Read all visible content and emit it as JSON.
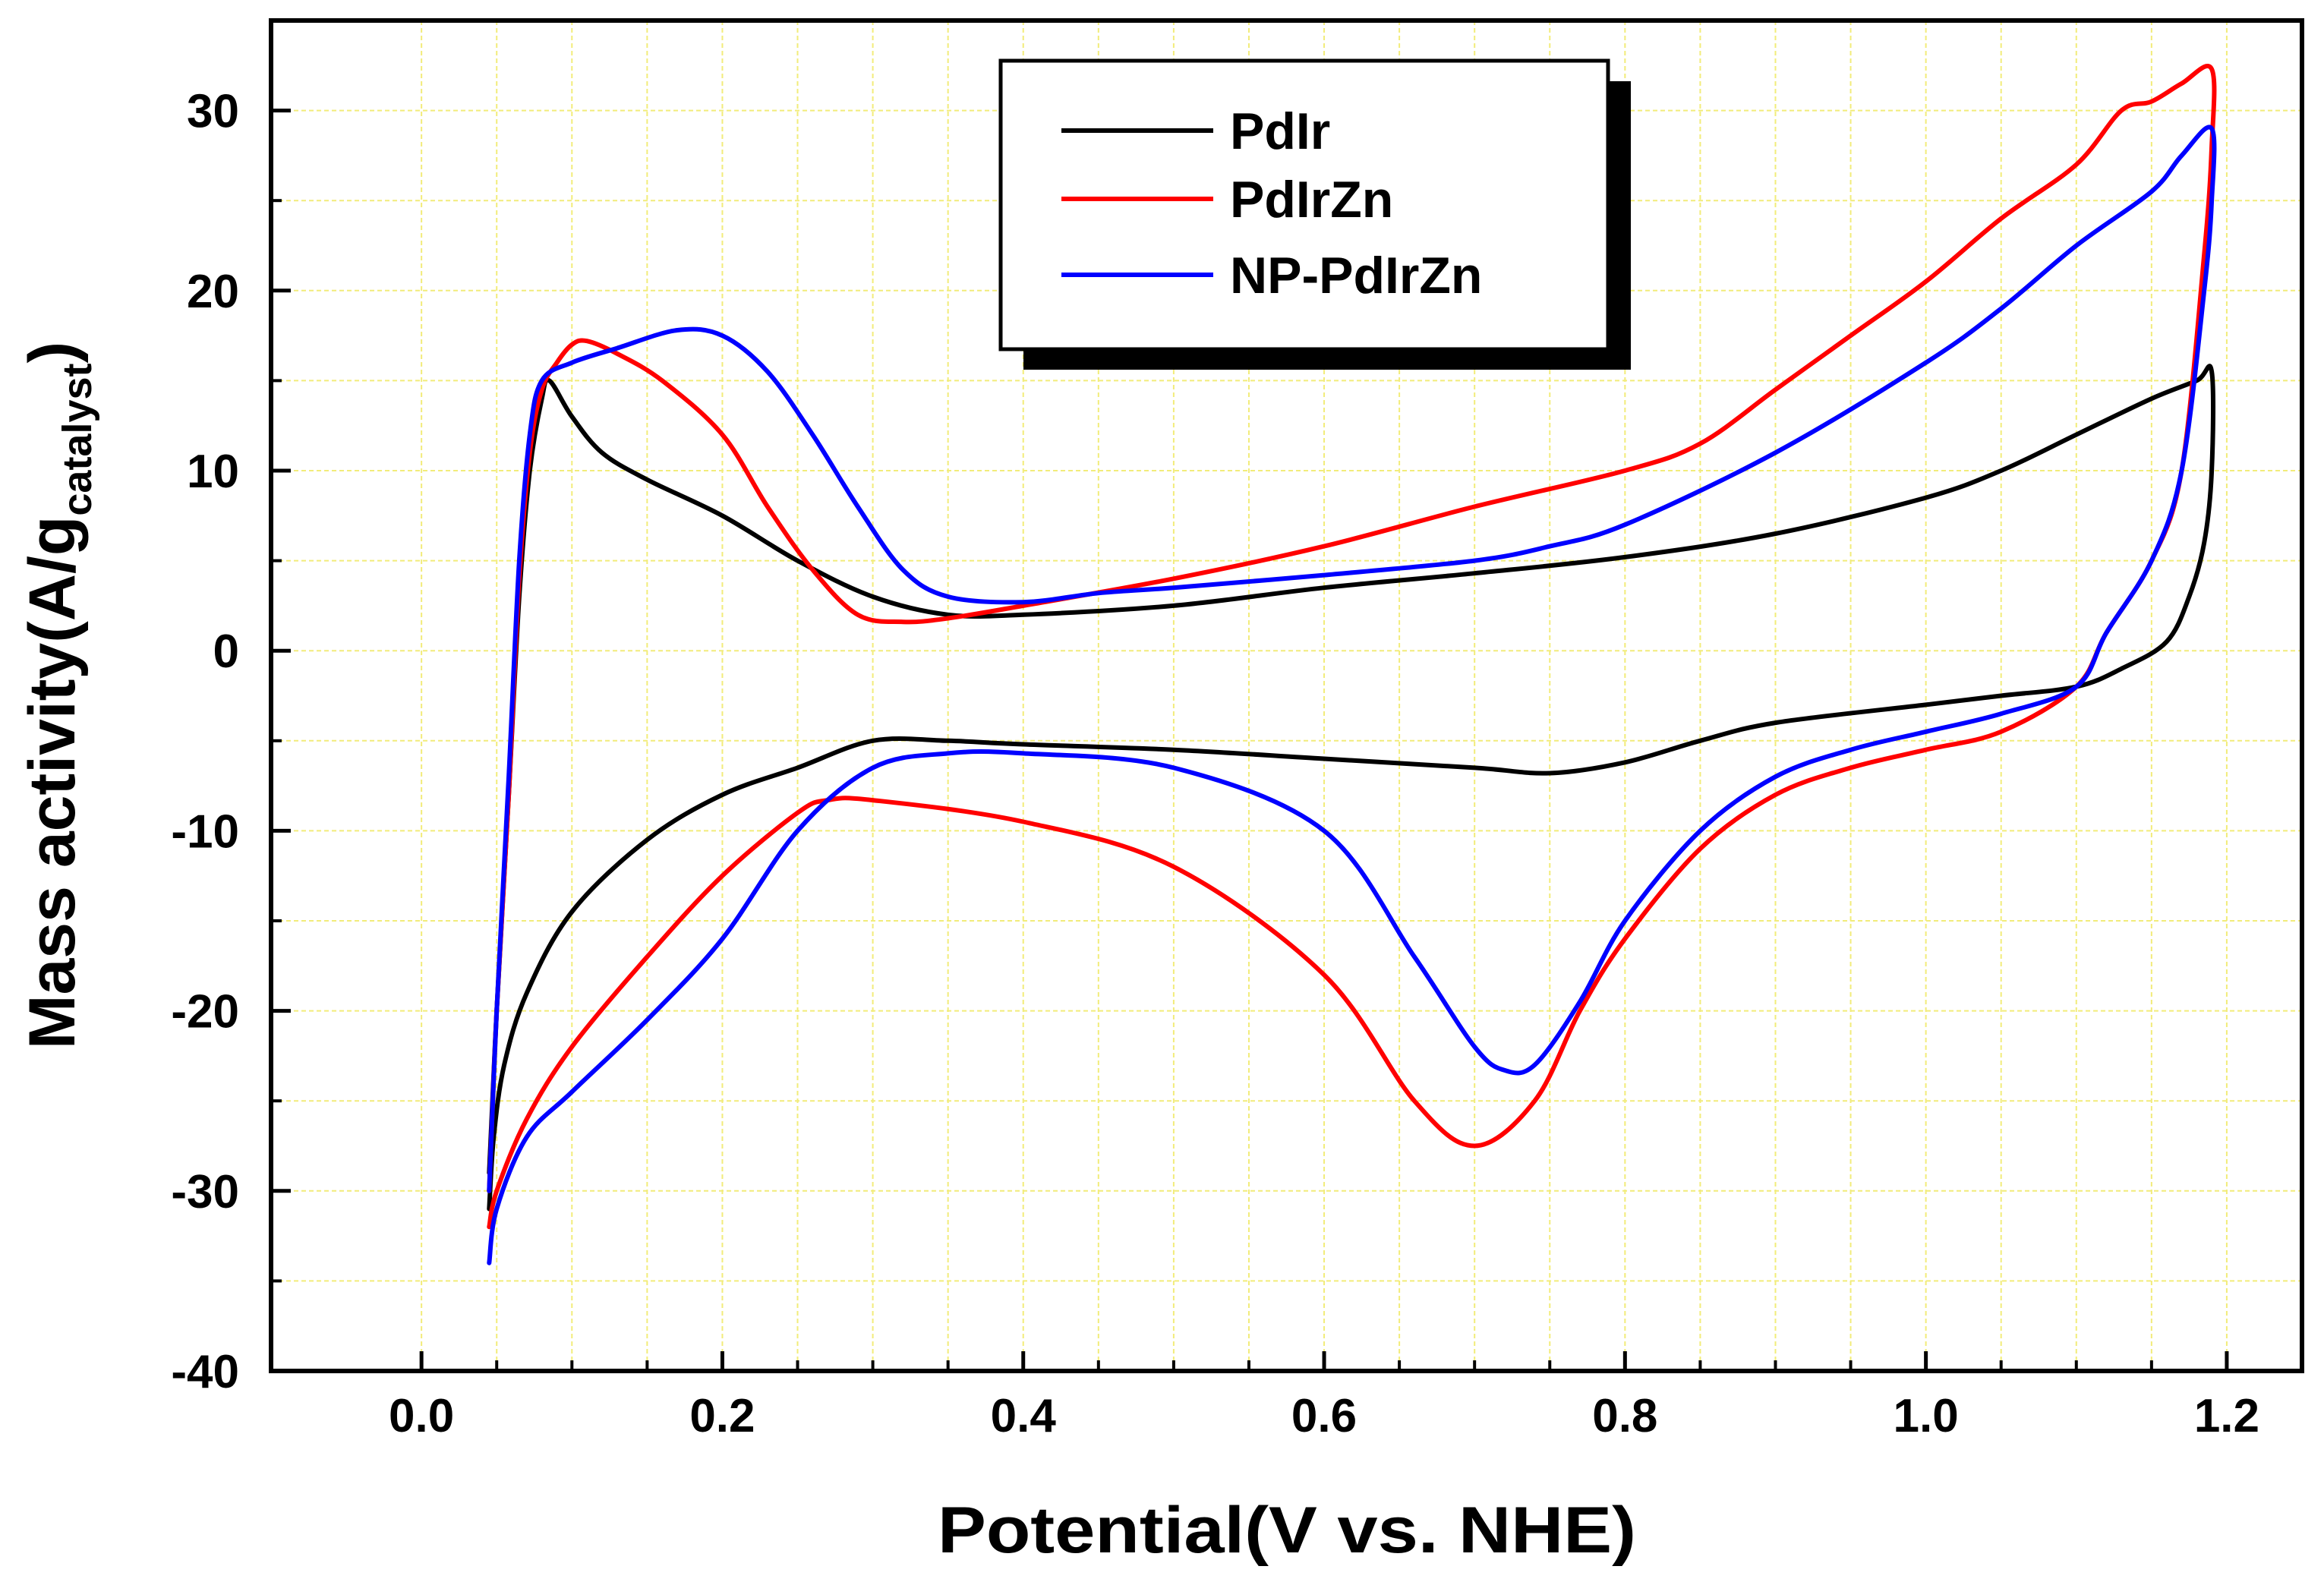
{
  "chart_data": {
    "type": "line",
    "title": "",
    "xlabel": "Potential(V vs. NHE)",
    "ylabel": {
      "main": "Mass activity(A/g",
      "subscript": "catalyst",
      "close": ")"
    },
    "xlim": [
      -0.1,
      1.25
    ],
    "ylim": [
      -40,
      35
    ],
    "xticks": [
      0.0,
      0.2,
      0.4,
      0.6,
      0.8,
      1.0,
      1.2
    ],
    "xtick_labels": [
      "0.0",
      "0.2",
      "0.4",
      "0.6",
      "0.8",
      "1.0",
      "1.2"
    ],
    "yticks": [
      -40,
      -30,
      -20,
      -10,
      0,
      10,
      20,
      30
    ],
    "ytick_labels": [
      "-40",
      "-30",
      "-20",
      "-10",
      "0",
      "10",
      "20",
      "30"
    ],
    "grid": true,
    "legend_position": "top-center",
    "series": [
      {
        "name": "PdIr",
        "color": "#000000",
        "points": [
          [
            0.045,
            -29.0
          ],
          [
            0.05,
            -20.0
          ],
          [
            0.058,
            -8.0
          ],
          [
            0.065,
            3.0
          ],
          [
            0.072,
            10.0
          ],
          [
            0.08,
            14.0
          ],
          [
            0.085,
            15.0
          ],
          [
            0.1,
            13.0
          ],
          [
            0.12,
            11.0
          ],
          [
            0.15,
            9.5
          ],
          [
            0.2,
            7.5
          ],
          [
            0.25,
            5.0
          ],
          [
            0.3,
            3.0
          ],
          [
            0.35,
            2.0
          ],
          [
            0.4,
            2.0
          ],
          [
            0.5,
            2.5
          ],
          [
            0.6,
            3.5
          ],
          [
            0.7,
            4.3
          ],
          [
            0.8,
            5.2
          ],
          [
            0.9,
            6.5
          ],
          [
            1.0,
            8.5
          ],
          [
            1.05,
            10.0
          ],
          [
            1.1,
            12.0
          ],
          [
            1.15,
            14.0
          ],
          [
            1.18,
            15.0
          ],
          [
            1.19,
            15.5
          ],
          [
            1.19,
            10.0
          ],
          [
            1.185,
            6.0
          ],
          [
            1.175,
            3.0
          ],
          [
            1.16,
            0.5
          ],
          [
            1.13,
            -1.0
          ],
          [
            1.1,
            -2.0
          ],
          [
            1.05,
            -2.5
          ],
          [
            1.0,
            -3.0
          ],
          [
            0.9,
            -4.0
          ],
          [
            0.85,
            -5.0
          ],
          [
            0.8,
            -6.2
          ],
          [
            0.75,
            -6.8
          ],
          [
            0.7,
            -6.5
          ],
          [
            0.6,
            -6.0
          ],
          [
            0.5,
            -5.5
          ],
          [
            0.4,
            -5.2
          ],
          [
            0.35,
            -5.0
          ],
          [
            0.3,
            -5.0
          ],
          [
            0.25,
            -6.5
          ],
          [
            0.2,
            -8.0
          ],
          [
            0.15,
            -10.5
          ],
          [
            0.1,
            -14.5
          ],
          [
            0.07,
            -19.0
          ],
          [
            0.055,
            -23.0
          ],
          [
            0.048,
            -27.0
          ],
          [
            0.045,
            -31.0
          ]
        ]
      },
      {
        "name": "PdIrZn",
        "color": "#ff0000",
        "points": [
          [
            0.045,
            -30.0
          ],
          [
            0.05,
            -20.0
          ],
          [
            0.058,
            -8.0
          ],
          [
            0.065,
            4.0
          ],
          [
            0.072,
            11.0
          ],
          [
            0.08,
            14.5
          ],
          [
            0.09,
            16.0
          ],
          [
            0.1,
            17.0
          ],
          [
            0.11,
            17.2
          ],
          [
            0.13,
            16.5
          ],
          [
            0.16,
            15.0
          ],
          [
            0.2,
            12.0
          ],
          [
            0.23,
            8.0
          ],
          [
            0.26,
            4.5
          ],
          [
            0.29,
            2.0
          ],
          [
            0.32,
            1.6
          ],
          [
            0.35,
            1.8
          ],
          [
            0.4,
            2.5
          ],
          [
            0.5,
            4.0
          ],
          [
            0.6,
            5.8
          ],
          [
            0.7,
            8.0
          ],
          [
            0.8,
            10.0
          ],
          [
            0.85,
            11.5
          ],
          [
            0.9,
            14.5
          ],
          [
            0.95,
            17.5
          ],
          [
            1.0,
            20.5
          ],
          [
            1.05,
            24.0
          ],
          [
            1.1,
            27.0
          ],
          [
            1.13,
            30.0
          ],
          [
            1.15,
            30.5
          ],
          [
            1.17,
            31.5
          ],
          [
            1.19,
            32.3
          ],
          [
            1.19,
            28.0
          ],
          [
            1.185,
            22.0
          ],
          [
            1.17,
            10.0
          ],
          [
            1.15,
            5.0
          ],
          [
            1.12,
            1.0
          ],
          [
            1.1,
            -2.0
          ],
          [
            1.05,
            -4.5
          ],
          [
            1.0,
            -5.5
          ],
          [
            0.95,
            -6.5
          ],
          [
            0.9,
            -8.0
          ],
          [
            0.85,
            -11.0
          ],
          [
            0.8,
            -16.0
          ],
          [
            0.77,
            -20.0
          ],
          [
            0.74,
            -25.0
          ],
          [
            0.7,
            -27.5
          ],
          [
            0.66,
            -25.0
          ],
          [
            0.6,
            -18.0
          ],
          [
            0.5,
            -12.0
          ],
          [
            0.4,
            -9.5
          ],
          [
            0.3,
            -8.3
          ],
          [
            0.27,
            -8.3
          ],
          [
            0.25,
            -9.0
          ],
          [
            0.2,
            -12.5
          ],
          [
            0.15,
            -17.0
          ],
          [
            0.1,
            -22.0
          ],
          [
            0.07,
            -26.0
          ],
          [
            0.05,
            -30.0
          ],
          [
            0.045,
            -32.0
          ]
        ]
      },
      {
        "name": "NP-PdIrZn",
        "color": "#0000ff",
        "points": [
          [
            0.045,
            -30.0
          ],
          [
            0.05,
            -20.0
          ],
          [
            0.058,
            -7.0
          ],
          [
            0.065,
            5.0
          ],
          [
            0.072,
            12.0
          ],
          [
            0.08,
            15.0
          ],
          [
            0.1,
            16.0
          ],
          [
            0.13,
            16.8
          ],
          [
            0.17,
            17.8
          ],
          [
            0.2,
            17.5
          ],
          [
            0.23,
            15.5
          ],
          [
            0.26,
            12.0
          ],
          [
            0.29,
            8.0
          ],
          [
            0.32,
            4.5
          ],
          [
            0.35,
            3.0
          ],
          [
            0.4,
            2.7
          ],
          [
            0.45,
            3.2
          ],
          [
            0.5,
            3.5
          ],
          [
            0.6,
            4.2
          ],
          [
            0.7,
            5.0
          ],
          [
            0.75,
            5.8
          ],
          [
            0.8,
            7.0
          ],
          [
            0.9,
            11.0
          ],
          [
            1.0,
            16.0
          ],
          [
            1.05,
            19.0
          ],
          [
            1.1,
            22.5
          ],
          [
            1.15,
            25.5
          ],
          [
            1.17,
            27.5
          ],
          [
            1.19,
            29.0
          ],
          [
            1.19,
            25.0
          ],
          [
            1.185,
            20.0
          ],
          [
            1.17,
            10.0
          ],
          [
            1.15,
            5.0
          ],
          [
            1.12,
            1.0
          ],
          [
            1.1,
            -2.0
          ],
          [
            1.05,
            -3.5
          ],
          [
            1.0,
            -4.5
          ],
          [
            0.95,
            -5.5
          ],
          [
            0.9,
            -7.0
          ],
          [
            0.85,
            -10.0
          ],
          [
            0.8,
            -15.0
          ],
          [
            0.77,
            -19.5
          ],
          [
            0.74,
            -23.0
          ],
          [
            0.72,
            -23.3
          ],
          [
            0.7,
            -22.0
          ],
          [
            0.66,
            -17.0
          ],
          [
            0.6,
            -10.0
          ],
          [
            0.5,
            -6.5
          ],
          [
            0.4,
            -5.7
          ],
          [
            0.35,
            -5.7
          ],
          [
            0.3,
            -6.5
          ],
          [
            0.25,
            -10.0
          ],
          [
            0.2,
            -16.0
          ],
          [
            0.15,
            -20.5
          ],
          [
            0.1,
            -24.5
          ],
          [
            0.07,
            -27.0
          ],
          [
            0.05,
            -31.0
          ],
          [
            0.045,
            -34.0
          ]
        ]
      }
    ]
  }
}
